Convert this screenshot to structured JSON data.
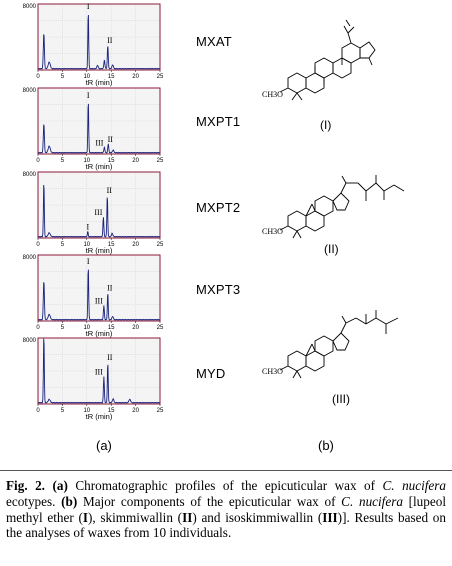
{
  "chromatograms": [
    {
      "id": "MXAT",
      "label": "MXAT",
      "ymax_label": "8000",
      "xticks": [
        "0",
        "5",
        "10",
        "15",
        "20",
        "25"
      ],
      "x_title": "tR (min)",
      "peaks": [
        {
          "t": 1.2,
          "h": 0.55,
          "w": 0.15
        },
        {
          "t": 2.3,
          "h": 0.1,
          "w": 0.3
        },
        {
          "t": 10.3,
          "h": 0.88,
          "w": 0.12,
          "label": "I"
        },
        {
          "t": 12.2,
          "h": 0.05,
          "w": 0.2
        },
        {
          "t": 13.6,
          "h": 0.13,
          "w": 0.15
        },
        {
          "t": 14.3,
          "h": 0.36,
          "w": 0.13,
          "label": "II"
        },
        {
          "t": 15.3,
          "h": 0.06,
          "w": 0.2
        }
      ]
    },
    {
      "id": "MXPT1",
      "label": "MXPT1",
      "ymax_label": "8000",
      "xticks": [
        "0",
        "5",
        "10",
        "15",
        "20",
        "25"
      ],
      "x_title": "tR (min)",
      "peaks": [
        {
          "t": 1.2,
          "h": 0.45,
          "w": 0.15
        },
        {
          "t": 2.3,
          "h": 0.1,
          "w": 0.3
        },
        {
          "t": 10.3,
          "h": 0.8,
          "w": 0.12,
          "label": "I"
        },
        {
          "t": 13.6,
          "h": 0.08,
          "w": 0.15,
          "label": "III"
        },
        {
          "t": 14.4,
          "h": 0.14,
          "w": 0.13,
          "label": "II"
        },
        {
          "t": 15.4,
          "h": 0.04,
          "w": 0.2
        }
      ]
    },
    {
      "id": "MXPT2",
      "label": "MXPT2",
      "ymax_label": "8000",
      "xticks": [
        "0",
        "5",
        "10",
        "15",
        "20",
        "25"
      ],
      "x_title": "tR (min)",
      "peaks": [
        {
          "t": 1.2,
          "h": 0.85,
          "w": 0.12
        },
        {
          "t": 2.3,
          "h": 0.06,
          "w": 0.3
        },
        {
          "t": 10.2,
          "h": 0.08,
          "w": 0.12,
          "label": "I"
        },
        {
          "t": 13.4,
          "h": 0.3,
          "w": 0.13,
          "label": "III"
        },
        {
          "t": 14.2,
          "h": 0.64,
          "w": 0.12,
          "label": "II"
        },
        {
          "t": 15.2,
          "h": 0.05,
          "w": 0.2
        }
      ]
    },
    {
      "id": "MXPT3",
      "label": "MXPT3",
      "ymax_label": "8000",
      "xticks": [
        "0",
        "5",
        "10",
        "15",
        "20",
        "25"
      ],
      "x_title": "tR (min)",
      "peaks": [
        {
          "t": 1.2,
          "h": 0.6,
          "w": 0.15
        },
        {
          "t": 2.3,
          "h": 0.08,
          "w": 0.3
        },
        {
          "t": 10.3,
          "h": 0.82,
          "w": 0.12,
          "label": "I"
        },
        {
          "t": 13.5,
          "h": 0.22,
          "w": 0.13,
          "label": "III"
        },
        {
          "t": 14.3,
          "h": 0.42,
          "w": 0.12,
          "label": "II"
        },
        {
          "t": 15.3,
          "h": 0.05,
          "w": 0.2
        }
      ]
    },
    {
      "id": "MYD",
      "label": "MYD",
      "ymax_label": "8000",
      "xticks": [
        "0",
        "5",
        "10",
        "15",
        "20",
        "25"
      ],
      "x_title": "tR (min)",
      "peaks": [
        {
          "t": 1.2,
          "h": 1.05,
          "w": 0.12
        },
        {
          "t": 2.3,
          "h": 0.05,
          "w": 0.3
        },
        {
          "t": 13.5,
          "h": 0.4,
          "w": 0.13,
          "label": "III"
        },
        {
          "t": 14.3,
          "h": 0.62,
          "w": 0.12,
          "label": "II"
        },
        {
          "t": 15.4,
          "h": 0.06,
          "w": 0.2
        },
        {
          "t": 18.8,
          "h": 0.05,
          "w": 0.25
        }
      ]
    }
  ],
  "structures": [
    {
      "id": "I",
      "label": "(I)",
      "methoxy": "CH3O"
    },
    {
      "id": "II",
      "label": "(II)",
      "methoxy": "CH3O"
    },
    {
      "id": "III",
      "label": "(III)",
      "methoxy": "CH3O"
    }
  ],
  "panels": {
    "a": "(a)",
    "b": "(b)"
  },
  "caption": {
    "fig": "Fig. 2.",
    "a_tag": "(a)",
    "a_text1": " Chromatographic profiles of the epicuticular wax of ",
    "species1": "C. nucifera",
    "a_text2": " ecotypes. ",
    "b_tag": "(b)",
    "b_text1": " Major components of the epicuticular wax of ",
    "species2": "C. nucifera",
    "b_text2": " [lupeol methyl ether (",
    "c1": "I",
    "b_text3": "), skimmiwallin (",
    "c2": "II",
    "b_text4": ") and isoskimmiwallin (",
    "c3": "III",
    "b_text5": ")]. Results based on the analyses of waxes from 10 individuals."
  },
  "colors": {
    "trace": "#1a237e",
    "frame": "#8b1a3a",
    "grid": "#c9c9c9"
  }
}
